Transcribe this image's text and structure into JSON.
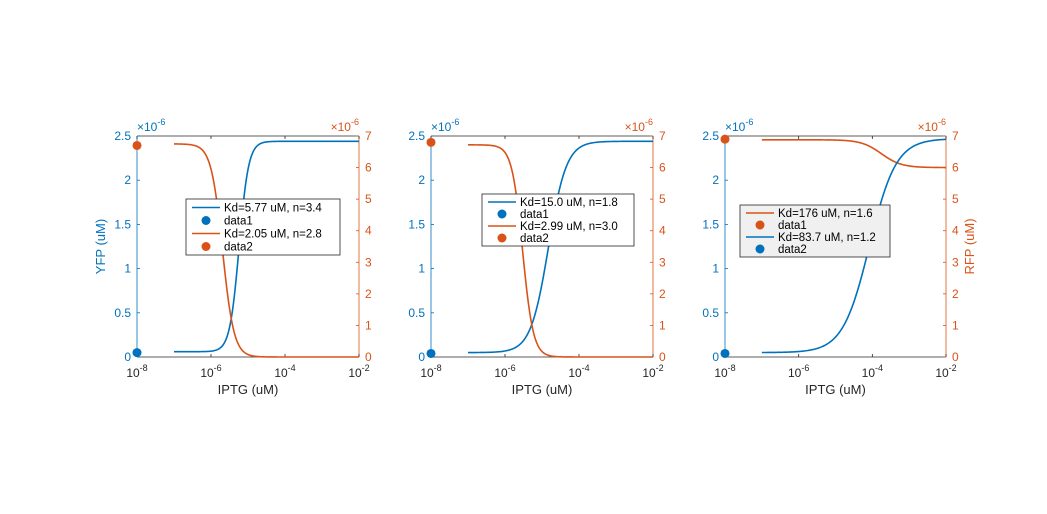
{
  "colors": {
    "blue": "#0072BD",
    "orange": "#D95319",
    "axis_dark": "#262626",
    "legend_border": "#262626"
  },
  "chart_data": [
    {
      "type": "line",
      "xlabel": "IPTG (uM)",
      "ylabel_left": "YFP (uM)",
      "ylabel_right": "",
      "x_ticks": [
        "10",
        "10",
        "10",
        "10"
      ],
      "x_tick_exponents": [
        "-8",
        "-6",
        "-4",
        "-2"
      ],
      "x_scale": "log",
      "xlim": [
        1e-08,
        0.01
      ],
      "y_left": {
        "ticks": [
          "0",
          "0.5",
          "1",
          "1.5",
          "2",
          "2.5"
        ],
        "lim": [
          0,
          2.5e-06
        ],
        "multiplier": "×10",
        "multiplier_exp": "-6"
      },
      "y_right": {
        "ticks": [
          "0",
          "1",
          "2",
          "3",
          "4",
          "5",
          "6",
          "7"
        ],
        "lim": [
          0,
          7e-06
        ],
        "multiplier": "×10",
        "multiplier_exp": "-6"
      },
      "legend": [
        {
          "label": "Kd=5.77 uM, n=3.4",
          "kind": "line",
          "color": "#0072BD"
        },
        {
          "label": "data1",
          "kind": "marker",
          "color": "#0072BD"
        },
        {
          "label": "Kd=2.05 uM, n=2.8",
          "kind": "line",
          "color": "#D95319"
        },
        {
          "label": "data2",
          "kind": "marker",
          "color": "#D95319"
        }
      ],
      "legend_shaded": false,
      "series": [
        {
          "name": "Kd=5.77 uM, n=3.4",
          "axis": "left",
          "color": "#0072BD",
          "model": "hill_up",
          "base": 6e-08,
          "top": 2.44e-06,
          "kd": 5.77e-06,
          "n": 3.4,
          "x_range": [
            1e-07,
            0.01
          ]
        },
        {
          "name": "data1",
          "axis": "left",
          "color": "#0072BD",
          "kind": "points",
          "points": [
            [
              1e-08,
              5e-08
            ]
          ]
        },
        {
          "name": "Kd=2.05 uM, n=2.8",
          "axis": "right",
          "color": "#D95319",
          "model": "hill_down",
          "base": 0.0,
          "top": 6.75e-06,
          "kd": 2.05e-06,
          "n": 2.8,
          "x_range": [
            1e-07,
            0.01
          ]
        },
        {
          "name": "data2",
          "axis": "right",
          "color": "#D95319",
          "kind": "points",
          "points": [
            [
              1e-08,
              6.7e-06
            ]
          ]
        }
      ]
    },
    {
      "type": "line",
      "xlabel": "IPTG (uM)",
      "ylabel_left": "",
      "ylabel_right": "",
      "x_ticks": [
        "10",
        "10",
        "10",
        "10"
      ],
      "x_tick_exponents": [
        "-8",
        "-6",
        "-4",
        "-2"
      ],
      "x_scale": "log",
      "xlim": [
        1e-08,
        0.01
      ],
      "y_left": {
        "ticks": [
          "0",
          "0.5",
          "1",
          "1.5",
          "2",
          "2.5"
        ],
        "lim": [
          0,
          2.5e-06
        ],
        "multiplier": "×10",
        "multiplier_exp": "-6"
      },
      "y_right": {
        "ticks": [
          "0",
          "1",
          "2",
          "3",
          "4",
          "5",
          "6",
          "7"
        ],
        "lim": [
          0,
          7e-06
        ],
        "multiplier": "×10",
        "multiplier_exp": "-6"
      },
      "legend": [
        {
          "label": "Kd=15.0 uM, n=1.8",
          "kind": "line",
          "color": "#0072BD"
        },
        {
          "label": "data1",
          "kind": "marker",
          "color": "#0072BD"
        },
        {
          "label": "Kd=2.99 uM, n=3.0",
          "kind": "line",
          "color": "#D95319"
        },
        {
          "label": "data2",
          "kind": "marker",
          "color": "#D95319"
        }
      ],
      "legend_shaded": false,
      "series": [
        {
          "name": "Kd=15.0 uM, n=1.8",
          "axis": "left",
          "color": "#0072BD",
          "model": "hill_up",
          "base": 5e-08,
          "top": 2.44e-06,
          "kd": 1.5e-05,
          "n": 1.8,
          "x_range": [
            1e-07,
            0.01
          ]
        },
        {
          "name": "data1",
          "axis": "left",
          "color": "#0072BD",
          "kind": "points",
          "points": [
            [
              1e-08,
              4e-08
            ]
          ]
        },
        {
          "name": "Kd=2.99 uM, n=3.0",
          "axis": "right",
          "color": "#D95319",
          "model": "hill_down",
          "base": 0.0,
          "top": 6.72e-06,
          "kd": 2.99e-06,
          "n": 3.0,
          "x_range": [
            1e-07,
            0.01
          ]
        },
        {
          "name": "data2",
          "axis": "right",
          "color": "#D95319",
          "kind": "points",
          "points": [
            [
              1e-08,
              6.8e-06
            ]
          ]
        }
      ]
    },
    {
      "type": "line",
      "xlabel": "IPTG (uM)",
      "ylabel_left": "",
      "ylabel_right": "RFP (uM)",
      "x_ticks": [
        "10",
        "10",
        "10",
        "10"
      ],
      "x_tick_exponents": [
        "-8",
        "-6",
        "-4",
        "-2"
      ],
      "x_scale": "log",
      "xlim": [
        1e-08,
        0.01
      ],
      "y_left": {
        "ticks": [
          "0",
          "0.5",
          "1",
          "1.5",
          "2",
          "2.5"
        ],
        "lim": [
          0,
          2.5e-06
        ],
        "multiplier": "×10",
        "multiplier_exp": "-6"
      },
      "y_right": {
        "ticks": [
          "0",
          "1",
          "2",
          "3",
          "4",
          "5",
          "6",
          "7"
        ],
        "lim": [
          0,
          7e-06
        ],
        "multiplier": "×10",
        "multiplier_exp": "-6"
      },
      "legend": [
        {
          "label": "Kd=176 uM, n=1.6",
          "kind": "line",
          "color": "#D95319"
        },
        {
          "label": "data1",
          "kind": "marker",
          "color": "#D95319"
        },
        {
          "label": "Kd=83.7 uM, n=1.2",
          "kind": "line",
          "color": "#0072BD"
        },
        {
          "label": "data2",
          "kind": "marker",
          "color": "#0072BD"
        }
      ],
      "legend_shaded": true,
      "series": [
        {
          "name": "Kd=176 uM, n=1.6",
          "axis": "right",
          "color": "#D95319",
          "model": "hill_down",
          "base": 6e-06,
          "top": 6.88e-06,
          "kd": 0.000176,
          "n": 1.6,
          "x_range": [
            1e-07,
            0.01
          ]
        },
        {
          "name": "data1",
          "axis": "right",
          "color": "#D95319",
          "kind": "points",
          "points": [
            [
              1e-08,
              6.9e-06
            ]
          ]
        },
        {
          "name": "Kd=83.7 uM, n=1.2",
          "axis": "left",
          "color": "#0072BD",
          "model": "hill_up",
          "base": 5e-08,
          "top": 2.47e-06,
          "kd": 8.37e-05,
          "n": 1.2,
          "x_range": [
            1e-07,
            0.01
          ]
        },
        {
          "name": "data2",
          "axis": "left",
          "color": "#0072BD",
          "kind": "points",
          "points": [
            [
              1e-08,
              4e-08
            ]
          ]
        }
      ]
    }
  ]
}
